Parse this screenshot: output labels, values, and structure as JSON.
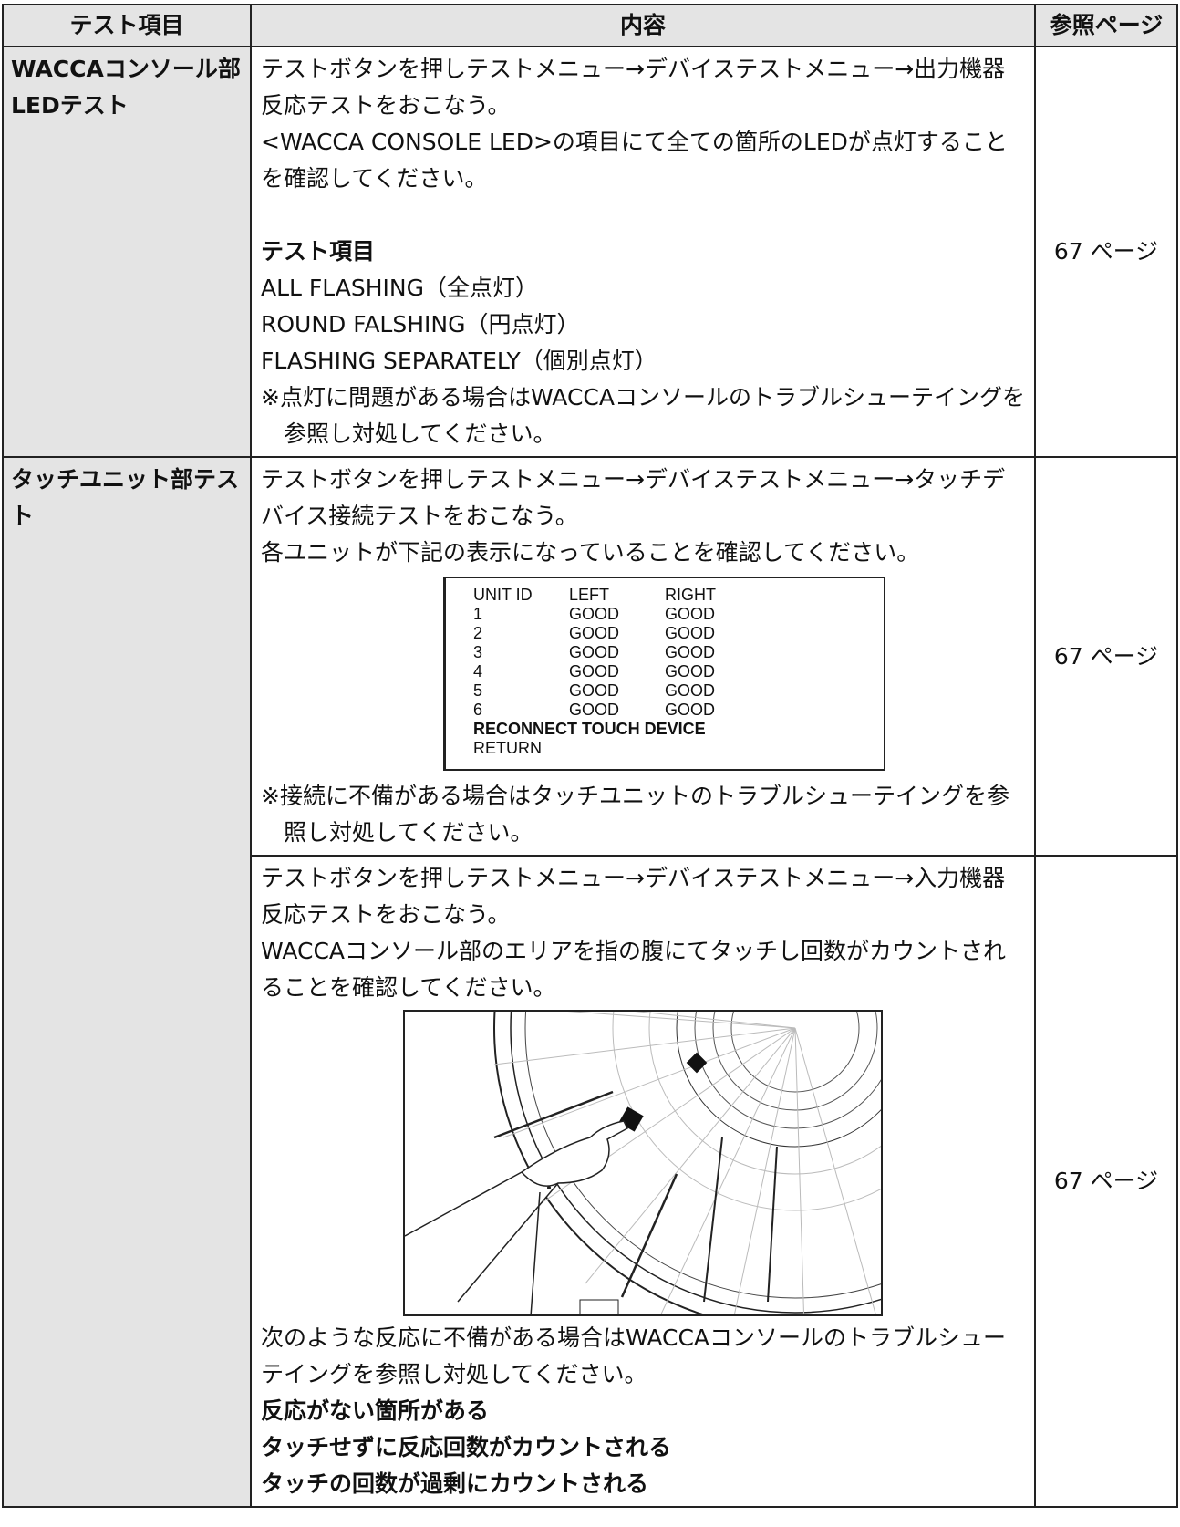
{
  "header": [
    "テスト項目",
    "内容",
    "参照ページ"
  ],
  "rows": [
    {
      "item": "WACCAコンソール部LEDテスト",
      "page": "67 ページ",
      "content": {
        "paragraphs": [
          "テストボタンを押しテストメニュー→デバイステストメニュー→出力機器反応テストをおこなう。",
          "<WACCA CONSOLE LED>の項目にて全ての箇所のLEDが点灯することを確認してください。"
        ],
        "heading": "テスト項目",
        "lines": [
          "ALL FLASHING（全点灯）",
          "ROUND FALSHING（円点灯）",
          "FLASHING SEPARATELY（個別点灯）"
        ],
        "note": "※点灯に問題がある場合はWACCAコンソールのトラブルシューテイングを参照し対処してください。"
      }
    },
    {
      "item": "タッチユニット部テスト",
      "page": "67 ページ",
      "content": {
        "paragraphs": [
          "テストボタンを押しテストメニュー→デバイステストメニュー→タッチデバイス接続テストをおこなう。",
          "各ユニットが下記の表示になっていることを確認してください。"
        ],
        "screen": {
          "rows": [
            [
              "UNIT ID",
              "LEFT",
              "RIGHT"
            ],
            [
              "1",
              "GOOD",
              "GOOD"
            ],
            [
              "2",
              "GOOD",
              "GOOD"
            ],
            [
              "3",
              "GOOD",
              "GOOD"
            ],
            [
              "4",
              "GOOD",
              "GOOD"
            ],
            [
              "5",
              "GOOD",
              "GOOD"
            ],
            [
              "6",
              "GOOD",
              "GOOD"
            ]
          ],
          "reconnect": "RECONNECT TOUCH DEVICE",
          "return": "RETURN"
        },
        "note": "※接続に不備がある場合はタッチユニットのトラブルシューテイングを参照し対処してください。"
      }
    },
    {
      "page": "67 ページ",
      "content": {
        "paragraphs": [
          "テストボタンを押しテストメニュー→デバイステストメニュー→入力機器反応テストをおこなう。",
          "WACCAコンソール部のエリアを指の腹にてタッチし回数がカウントされることを確認してください。"
        ],
        "after": "次のような反応に不備がある場合はWACCAコンソールのトラブルシューテイングを参照し対処してください。",
        "bold_lines": [
          "反応がない箇所がある",
          "タッチせずに反応回数がカウントされる",
          "タッチの回数が過剰にカウントされる"
        ]
      }
    }
  ]
}
